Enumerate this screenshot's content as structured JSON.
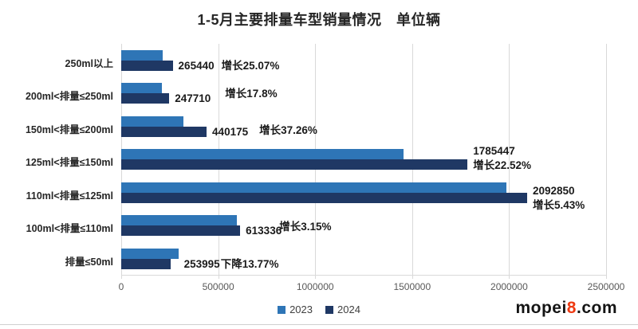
{
  "title": "1-5月主要排量车型销量情况　单位辆",
  "chart_data": {
    "type": "bar",
    "orientation": "horizontal",
    "title": "1-5月主要排量车型销量情况",
    "unit_note": "单位辆",
    "categories": [
      "250ml以上",
      "200ml<排量≤250ml",
      "150ml<排量≤200ml",
      "125ml<排量≤150ml",
      "110ml<排量≤125ml",
      "100ml<排量≤110ml",
      "排量≤50ml"
    ],
    "series": [
      {
        "name": "2023",
        "color": "#2e75b6",
        "values": [
          212200,
          210300,
          320700,
          1457300,
          1985100,
          594600,
          294600
        ]
      },
      {
        "name": "2024",
        "color": "#1f3864",
        "values": [
          265440,
          247710,
          440175,
          1785447,
          2092850,
          613336,
          253995
        ]
      }
    ],
    "data_labels": [
      {
        "value": "265440",
        "growth": "增长25.07%"
      },
      {
        "value": "247710",
        "growth": "增长17.8%"
      },
      {
        "value": "440175",
        "growth": "增长37.26%"
      },
      {
        "value": "1785447",
        "growth": "增长22.52%"
      },
      {
        "value": "2092850",
        "growth": "增长5.43%"
      },
      {
        "value": "613336",
        "growth": "增长3.15%"
      },
      {
        "value": "253995",
        "growth": "下降13.77%"
      }
    ],
    "x_ticks": [
      "0",
      "500000",
      "1000000",
      "1500000",
      "2000000",
      "2500000"
    ],
    "x_max": 2500000,
    "grid": true,
    "legend": [
      "2023",
      "2024"
    ],
    "legend_position": "bottom-center",
    "colors": {
      "grid": "#d9d9d9",
      "tick_text": "#595959",
      "label_text": "#1a1a1a"
    }
  },
  "watermark": {
    "prefix": "mopei",
    "highlight": "8",
    "suffix": ".com",
    "highlight_color": "#ee3911"
  }
}
